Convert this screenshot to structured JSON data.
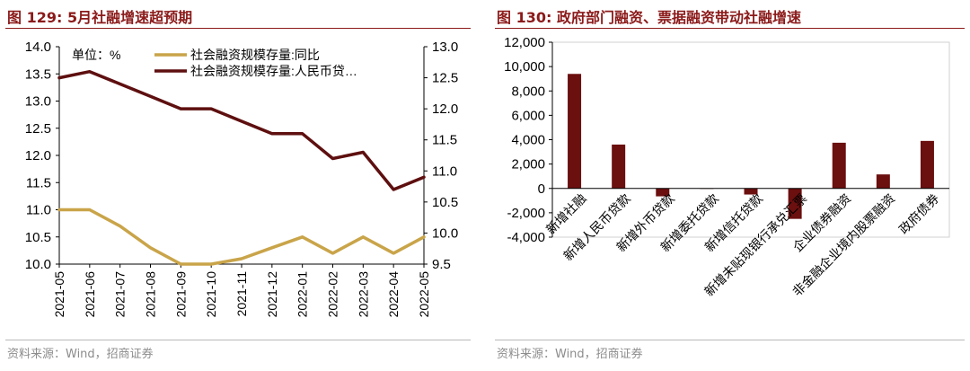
{
  "left": {
    "title": "图 129:  5月社融增速超预期",
    "source": "资料来源：Wind，招商证券",
    "chart_data": {
      "type": "line",
      "unit_label": "单位：%",
      "categories": [
        "2021-05",
        "2021-06",
        "2021-07",
        "2021-08",
        "2021-09",
        "2021-10",
        "2021-11",
        "2021-12",
        "2022-01",
        "2022-02",
        "2022-03",
        "2022-04",
        "2022-05"
      ],
      "y_left": {
        "min": 10.0,
        "max": 14.0,
        "ticks": [
          "10.0",
          "10.5",
          "11.0",
          "11.5",
          "12.0",
          "12.5",
          "13.0",
          "13.5",
          "14.0"
        ]
      },
      "y_right": {
        "min": 9.5,
        "max": 13.0,
        "ticks": [
          "9.5",
          "10.0",
          "10.5",
          "11.0",
          "11.5",
          "12.0",
          "12.5",
          "13.0"
        ]
      },
      "series": [
        {
          "name": "社会融资规模存量:同比",
          "axis": "left",
          "color": "#C9A449",
          "values": [
            11.0,
            11.0,
            10.7,
            10.3,
            10.0,
            10.0,
            10.1,
            10.3,
            10.5,
            10.2,
            10.5,
            10.2,
            10.5
          ]
        },
        {
          "name": "社会融资规模存量:人民币贷…",
          "axis": "right",
          "color": "#5E0F0F",
          "values": [
            12.5,
            12.6,
            12.4,
            12.2,
            12.0,
            12.0,
            11.8,
            11.6,
            11.6,
            11.2,
            11.3,
            10.7,
            10.9
          ]
        }
      ],
      "legend_position": "top-left",
      "grid": false
    }
  },
  "right": {
    "title": "图 130:  政府部门融资、票据融资带动社融增速",
    "source": "资料来源：Wind，招商证券",
    "chart_data": {
      "type": "bar",
      "color": "#6B0F0F",
      "categories": [
        "新增社融",
        "新增人民币贷款",
        "新增外币贷款",
        "新增委托贷款",
        "新增信托贷款",
        "新增未贴现银行承兑汇票",
        "企业债券融资",
        "非金融企业境内股票融资",
        "政府债券"
      ],
      "values": [
        9400,
        3600,
        -650,
        0,
        -500,
        -2500,
        3750,
        1150,
        3900
      ],
      "ylim": [
        -4000,
        12000
      ],
      "y_ticks": [
        "-4,000",
        "-2,000",
        "0",
        "2,000",
        "4,000",
        "6,000",
        "8,000",
        "10,000",
        "12,000"
      ],
      "grid": false
    }
  }
}
